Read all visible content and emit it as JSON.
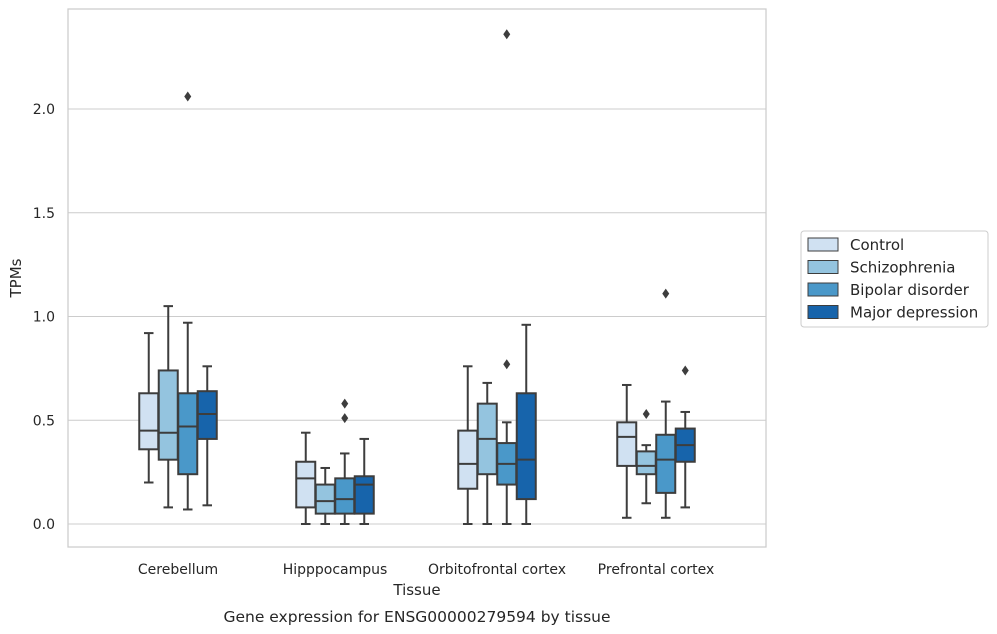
{
  "chart_data": {
    "type": "box",
    "xlabel": "Tissue",
    "ylabel": "TPMs",
    "caption": "Gene expression for ENSG00000279594 by tissue",
    "ylim": [
      -0.11,
      2.48
    ],
    "yticks": [
      0.0,
      0.5,
      1.0,
      1.5,
      2.0
    ],
    "ytick_labels": [
      "0.0",
      "0.5",
      "1.0",
      "1.5",
      "2.0"
    ],
    "grid": "horizontal",
    "legend_position": "right",
    "categories": [
      "Cerebellum",
      "Hipppocampus",
      "Orbitofrontal cortex",
      "Prefrontal cortex"
    ],
    "series": [
      {
        "name": "Control",
        "color": "#d0e1f2",
        "boxes": [
          {
            "whisker_low": 0.2,
            "q1": 0.36,
            "median": 0.45,
            "q3": 0.63,
            "whisker_high": 0.92,
            "outliers": []
          },
          {
            "whisker_low": 0.0,
            "q1": 0.08,
            "median": 0.22,
            "q3": 0.3,
            "whisker_high": 0.44,
            "outliers": []
          },
          {
            "whisker_low": 0.0,
            "q1": 0.17,
            "median": 0.29,
            "q3": 0.45,
            "whisker_high": 0.76,
            "outliers": []
          },
          {
            "whisker_low": 0.03,
            "q1": 0.28,
            "median": 0.42,
            "q3": 0.49,
            "whisker_high": 0.67,
            "outliers": []
          }
        ]
      },
      {
        "name": "Schizophrenia",
        "color": "#94c4df",
        "boxes": [
          {
            "whisker_low": 0.08,
            "q1": 0.31,
            "median": 0.44,
            "q3": 0.74,
            "whisker_high": 1.05,
            "outliers": []
          },
          {
            "whisker_low": 0.0,
            "q1": 0.05,
            "median": 0.11,
            "q3": 0.19,
            "whisker_high": 0.27,
            "outliers": []
          },
          {
            "whisker_low": 0.0,
            "q1": 0.24,
            "median": 0.41,
            "q3": 0.58,
            "whisker_high": 0.68,
            "outliers": []
          },
          {
            "whisker_low": 0.1,
            "q1": 0.24,
            "median": 0.28,
            "q3": 0.35,
            "whisker_high": 0.38,
            "outliers": [
              0.53
            ]
          }
        ]
      },
      {
        "name": "Bipolar disorder",
        "color": "#4a98c9",
        "boxes": [
          {
            "whisker_low": 0.07,
            "q1": 0.24,
            "median": 0.47,
            "q3": 0.63,
            "whisker_high": 0.97,
            "outliers": [
              2.06
            ]
          },
          {
            "whisker_low": 0.0,
            "q1": 0.05,
            "median": 0.12,
            "q3": 0.22,
            "whisker_high": 0.34,
            "outliers": [
              0.51,
              0.58
            ]
          },
          {
            "whisker_low": 0.0,
            "q1": 0.19,
            "median": 0.29,
            "q3": 0.39,
            "whisker_high": 0.49,
            "outliers": [
              0.77,
              2.36
            ]
          },
          {
            "whisker_low": 0.03,
            "q1": 0.15,
            "median": 0.31,
            "q3": 0.43,
            "whisker_high": 0.59,
            "outliers": [
              1.11
            ]
          }
        ]
      },
      {
        "name": "Major depression",
        "color": "#1764ab",
        "boxes": [
          {
            "whisker_low": 0.09,
            "q1": 0.41,
            "median": 0.53,
            "q3": 0.64,
            "whisker_high": 0.76,
            "outliers": []
          },
          {
            "whisker_low": 0.0,
            "q1": 0.05,
            "median": 0.19,
            "q3": 0.23,
            "whisker_high": 0.41,
            "outliers": []
          },
          {
            "whisker_low": 0.0,
            "q1": 0.12,
            "median": 0.31,
            "q3": 0.63,
            "whisker_high": 0.96,
            "outliers": []
          },
          {
            "whisker_low": 0.08,
            "q1": 0.3,
            "median": 0.38,
            "q3": 0.46,
            "whisker_high": 0.54,
            "outliers": [
              0.74
            ]
          }
        ]
      }
    ]
  }
}
